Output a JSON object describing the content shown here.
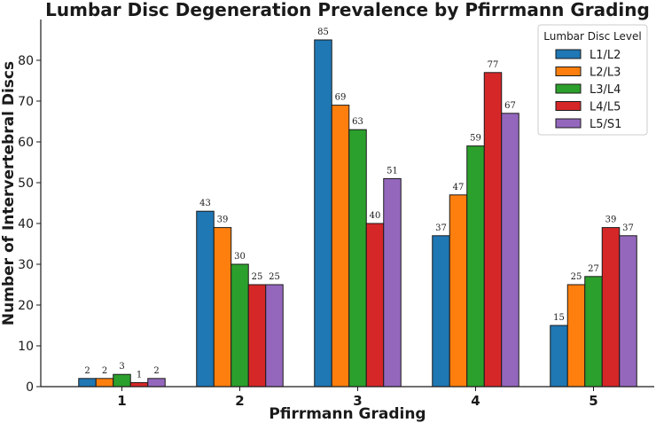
{
  "chart_data": {
    "type": "bar",
    "title": "Lumbar Disc Degeneration Prevalence by Pfirrmann Grading",
    "xlabel": "Pfirrmann Grading",
    "ylabel": "Number of Intervertebral Discs",
    "categories": [
      "1",
      "2",
      "3",
      "4",
      "5"
    ],
    "ylim": [
      0,
      90
    ],
    "yticks": [
      0,
      10,
      20,
      30,
      40,
      50,
      60,
      70,
      80
    ],
    "legend_title": "Lumbar Disc Level",
    "legend_position": "top-right",
    "series": [
      {
        "name": "L1/L2",
        "color": "#1f77b4",
        "values": [
          2,
          43,
          85,
          37,
          15
        ]
      },
      {
        "name": "L2/L3",
        "color": "#ff7f0e",
        "values": [
          2,
          39,
          69,
          47,
          25
        ]
      },
      {
        "name": "L3/L4",
        "color": "#2ca02c",
        "values": [
          3,
          30,
          63,
          59,
          27
        ]
      },
      {
        "name": "L4/L5",
        "color": "#d62728",
        "values": [
          1,
          25,
          40,
          77,
          39
        ]
      },
      {
        "name": "L5/S1",
        "color": "#9467bd",
        "values": [
          2,
          25,
          51,
          67,
          37
        ]
      }
    ]
  }
}
